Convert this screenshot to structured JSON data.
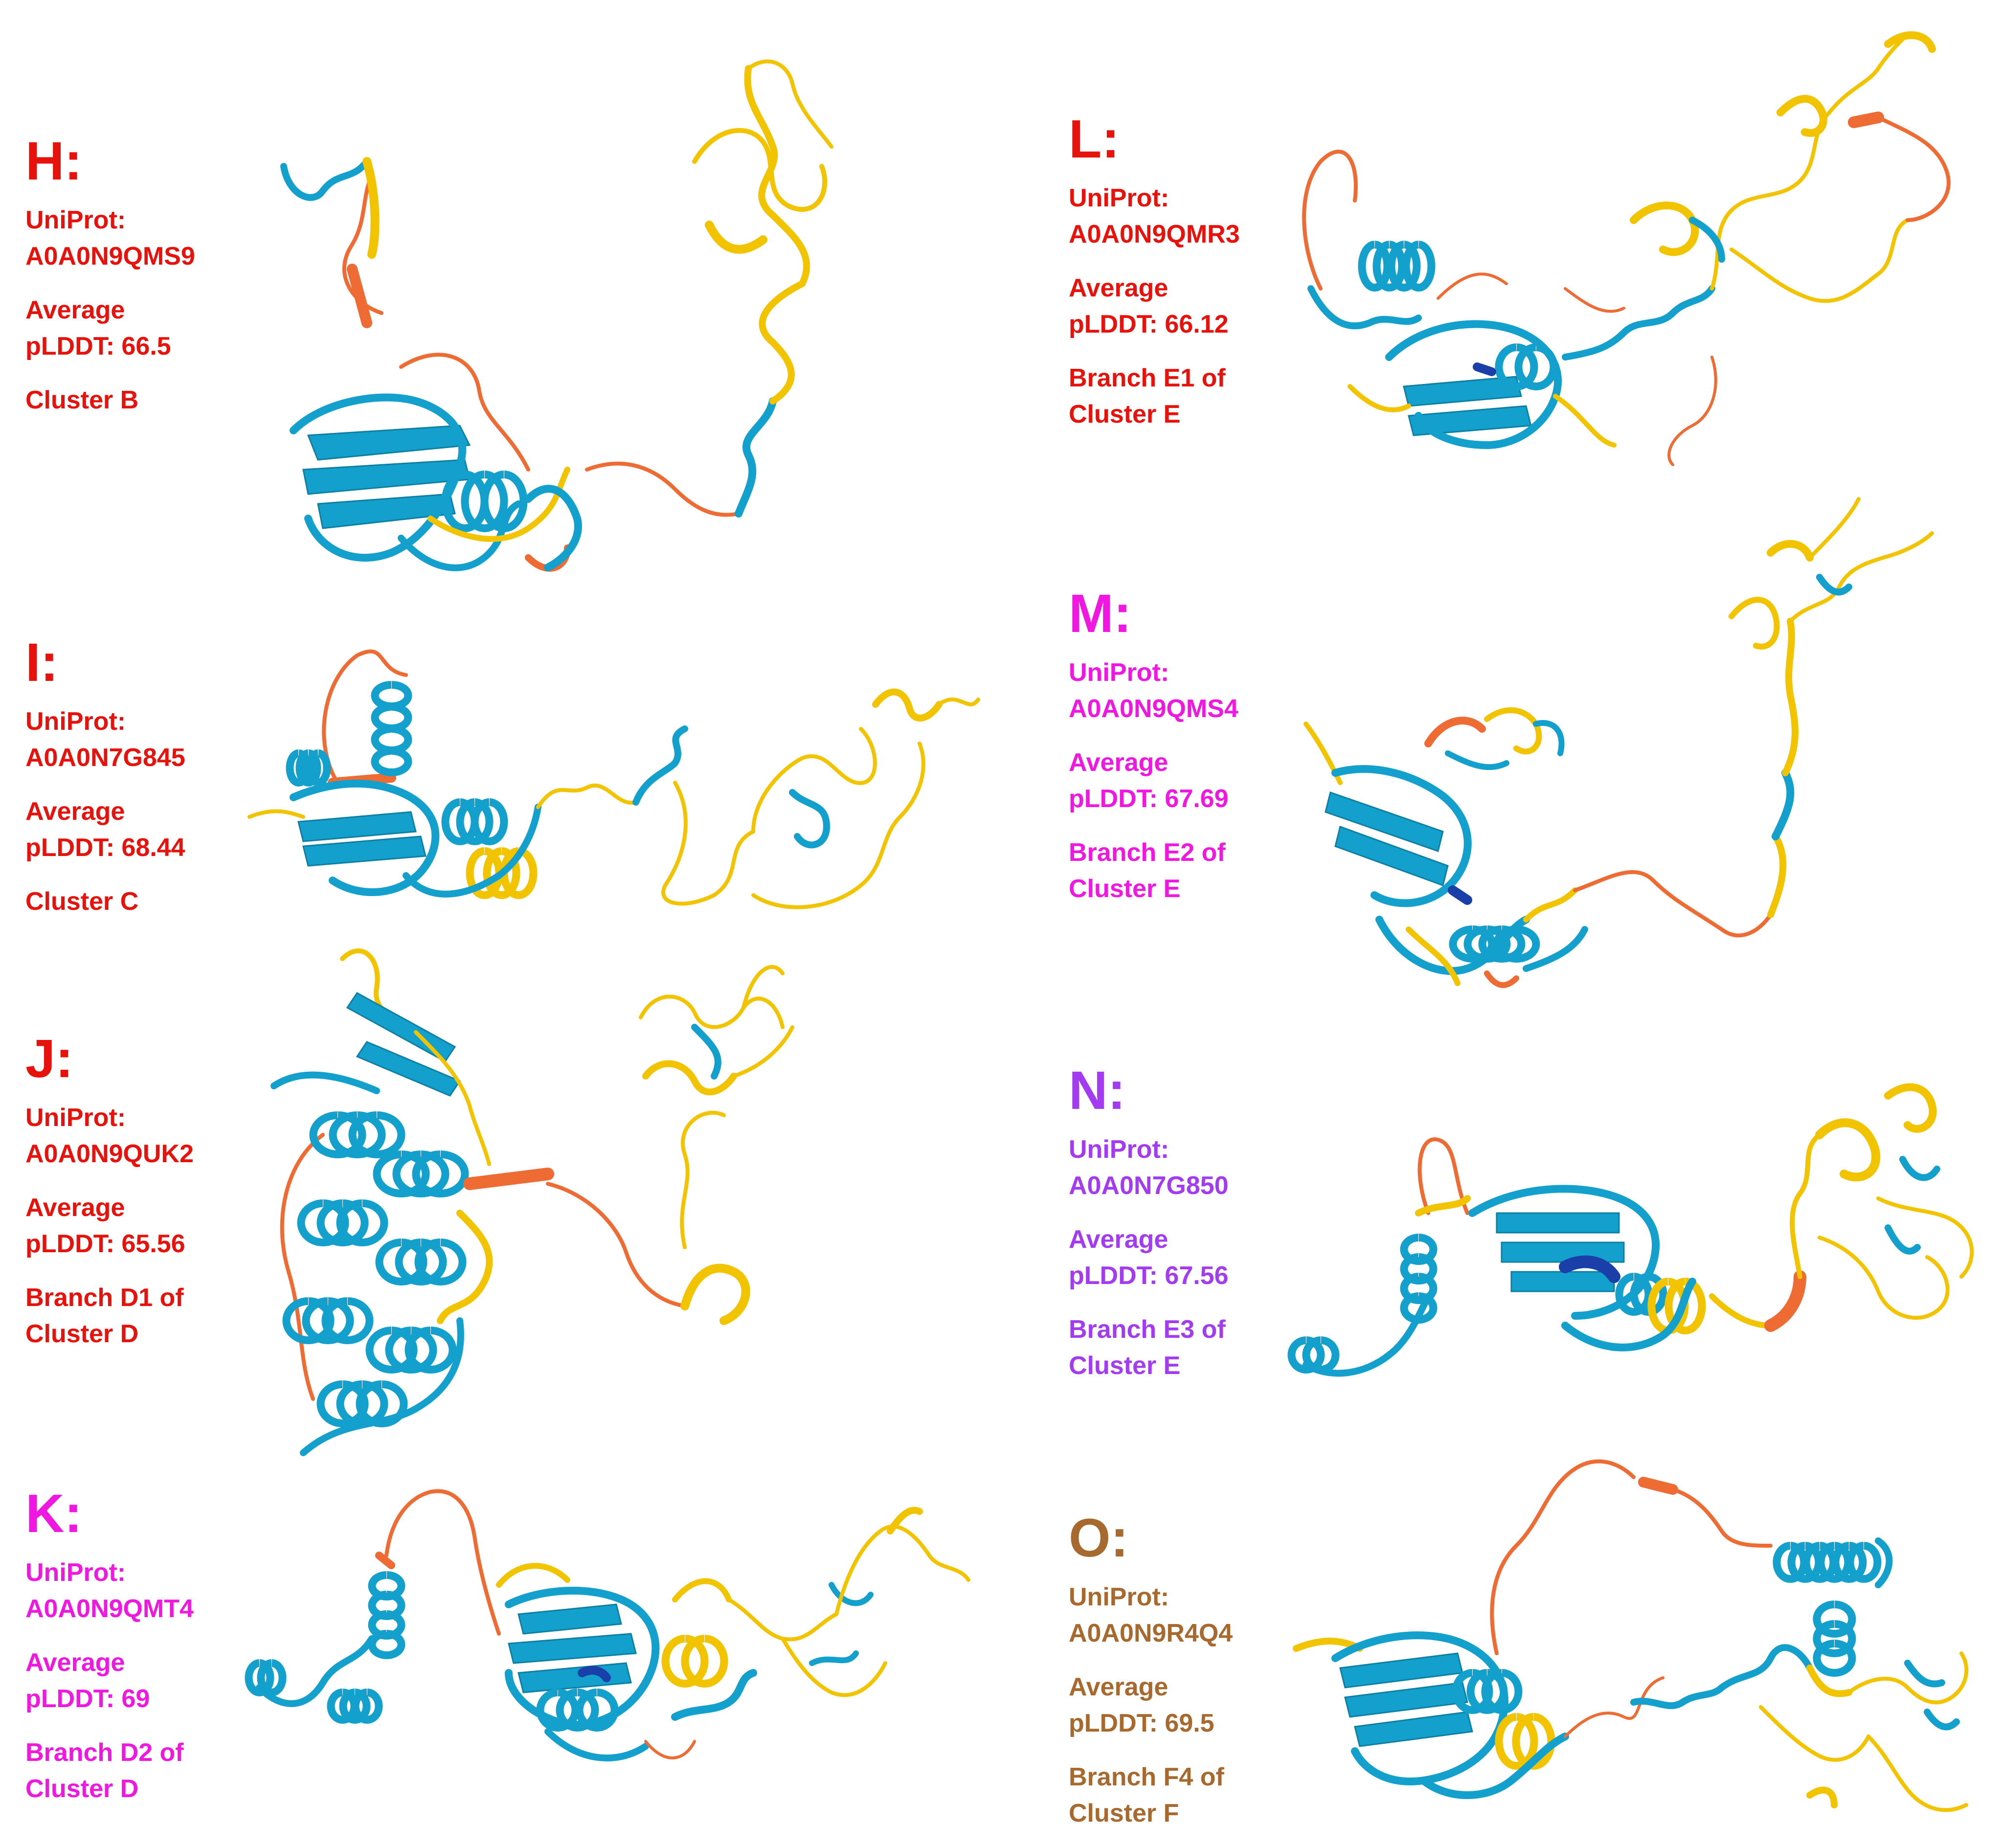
{
  "colors": {
    "very_high": "#1a3fa8",
    "confident": "#14a0cc",
    "low": "#f2c400",
    "very_low": "#ef6b34",
    "red": "#e8120c",
    "magenta": "#f018e0",
    "purple": "#a33cf0",
    "brown": "#a8692f"
  },
  "panels": [
    {
      "id": "H",
      "letter": "H:",
      "uniprot_label": "UniProt:",
      "uniprot_id": "A0A0N9QMS9",
      "avg_label": "Average",
      "plddt": "pLDDT: 66.5",
      "cluster_1": "Cluster B",
      "cluster_2": "",
      "color": "#e8120c"
    },
    {
      "id": "I",
      "letter": "I:",
      "uniprot_label": "UniProt:",
      "uniprot_id": "A0A0N7G845",
      "avg_label": "Average",
      "plddt": "pLDDT: 68.44",
      "cluster_1": "Cluster C",
      "cluster_2": "",
      "color": "#e8120c"
    },
    {
      "id": "J",
      "letter": "J:",
      "uniprot_label": "UniProt:",
      "uniprot_id": "A0A0N9QUK2",
      "avg_label": "Average",
      "plddt": "pLDDT: 65.56",
      "cluster_1": "Branch D1 of",
      "cluster_2": "Cluster D",
      "color": "#e8120c"
    },
    {
      "id": "K",
      "letter": "K:",
      "uniprot_label": "UniProt:",
      "uniprot_id": "A0A0N9QMT4",
      "avg_label": "Average",
      "plddt": "pLDDT: 69",
      "cluster_1": "Branch D2 of",
      "cluster_2": "Cluster D",
      "color": "#f018e0"
    },
    {
      "id": "L",
      "letter": "L:",
      "uniprot_label": "UniProt:",
      "uniprot_id": "A0A0N9QMR3",
      "avg_label": "Average",
      "plddt": "pLDDT: 66.12",
      "cluster_1": "Branch E1 of",
      "cluster_2": "Cluster E",
      "color": "#e8120c"
    },
    {
      "id": "M",
      "letter": "M:",
      "uniprot_label": "UniProt:",
      "uniprot_id": "A0A0N9QMS4",
      "avg_label": "Average",
      "plddt": "pLDDT: 67.69",
      "cluster_1": "Branch E2 of",
      "cluster_2": "Cluster E",
      "color": "#f018e0"
    },
    {
      "id": "N",
      "letter": "N:",
      "uniprot_label": "UniProt:",
      "uniprot_id": "A0A0N7G850",
      "avg_label": "Average",
      "plddt": "pLDDT: 67.56",
      "cluster_1": "Branch E3 of",
      "cluster_2": "Cluster E",
      "color": "#a33cf0"
    },
    {
      "id": "O",
      "letter": "O:",
      "uniprot_label": "UniProt:",
      "uniprot_id": "A0A0N9R4Q4",
      "avg_label": "Average",
      "plddt": "pLDDT: 69.5",
      "cluster_1": "Branch F4 of",
      "cluster_2": "Cluster F",
      "color": "#a8692f"
    }
  ]
}
